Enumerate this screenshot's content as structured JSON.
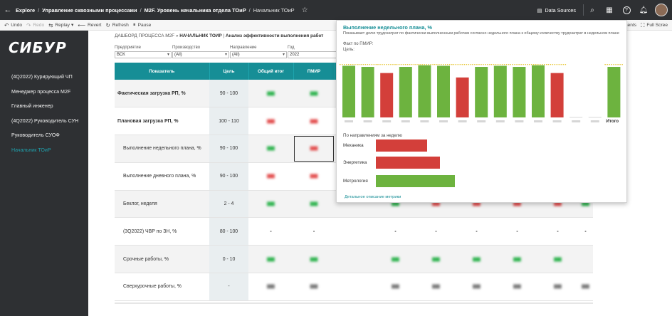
{
  "header": {
    "crumbs": [
      "Explore",
      "Управление сквозными процессами",
      "M2F. Уровень начальника отдела ТОиР"
    ],
    "current": "Начальник ТОиР",
    "data_sources": "Data Sources"
  },
  "toolbar": {
    "undo": "Undo",
    "redo": "Redo",
    "replay": "Replay",
    "revert": "Revert",
    "refresh": "Refresh",
    "pause": "Pause",
    "comments": "ments",
    "fullscreen": "Full Scree"
  },
  "sidebar": {
    "logo": "СИБУР",
    "items": [
      "(4Q2022) Курирующий ЧП",
      "Менеджер процесса M2F",
      "Главный инженер",
      "(4Q2022) Руководитель СУН",
      "Руководитель СУОФ",
      "Начальник ТОиР"
    ],
    "active_index": 5
  },
  "dashboard": {
    "title_prefix": "ДАШБОРД ПРОЦЕССА M2F",
    "title_mid": "НАЧАЛЬНИК ТОИР",
    "title_suffix": "Анализ эффективности выполнения работ",
    "filters": [
      {
        "label": "Предприятие",
        "value": "ВСК"
      },
      {
        "label": "Производство",
        "value": "(All)"
      },
      {
        "label": "Направление",
        "value": "(All)"
      },
      {
        "label": "Год",
        "value": "2022"
      }
    ],
    "columns": [
      "Показатель",
      "Цель",
      "Общий итог",
      "ПМИР"
    ],
    "rows": [
      {
        "name": "Фактическая загрузка РП, %",
        "target": "90 - 100",
        "bold": true
      },
      {
        "name": "Плановая загрузка РП, %",
        "target": "100 - 110",
        "bold": true
      },
      {
        "name": "Выполнение недельного плана, %",
        "target": "90 - 100",
        "bold": false
      },
      {
        "name": "Выполнение дневного плана, %",
        "target": "90 - 100",
        "bold": false
      },
      {
        "name": "Беклог, неделя",
        "target": "2 - 4",
        "bold": false
      },
      {
        "name": "(3Q2022) ЧВР по ЗН, %",
        "target": "80 - 100",
        "bold": false
      },
      {
        "name": "Срочные работы, %",
        "target": "0 - 10",
        "bold": false
      },
      {
        "name": "Сверхурочные работы, %",
        "target": "-",
        "bold": false
      }
    ],
    "dash": "-"
  },
  "tooltip": {
    "title": "Выполнение недельного плана, %",
    "description": "Показывает долю трудозатрат по фактически выполненным работам согласно недельного плана к общему количеству трудозатрат в недельном плане",
    "fact_label": "Факт по ПМИР:",
    "target_label": "Цель:",
    "itogo": "Итого",
    "directions_title": "По направлениям за неделю",
    "link": "Детальное описание метрики",
    "colors": {
      "green": "#6db33f",
      "red": "#d33f3a",
      "target": "#e0b800"
    }
  },
  "chart_data": [
    {
      "type": "bar",
      "title": "Выполнение недельного плана, %",
      "categories": [
        "",
        "",
        "",
        "",
        "",
        "",
        "",
        "",
        "",
        "",
        "",
        "",
        "",
        "",
        "Итого"
      ],
      "values": [
        93,
        91,
        80,
        91,
        94,
        93,
        72,
        91,
        93,
        91,
        94,
        80,
        0,
        0,
        91
      ],
      "colors": [
        "green",
        "green",
        "red",
        "green",
        "green",
        "green",
        "red",
        "green",
        "green",
        "green",
        "green",
        "red",
        "none",
        "none",
        "green"
      ],
      "target": 90,
      "ylim": [
        0,
        100
      ]
    },
    {
      "type": "bar",
      "title": "По направлениям за неделю",
      "orientation": "horizontal",
      "categories": [
        "Механика",
        "Энергетика",
        "Метрология"
      ],
      "values": [
        62,
        78,
        96
      ],
      "colors": [
        "red",
        "red",
        "green"
      ]
    }
  ]
}
